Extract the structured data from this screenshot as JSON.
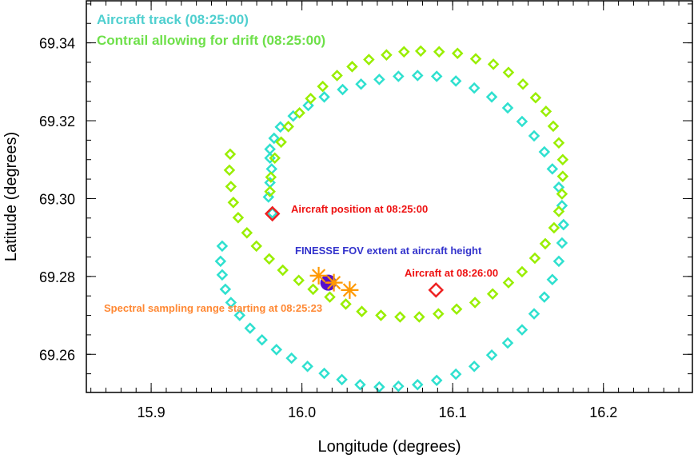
{
  "chart_data": {
    "type": "scatter",
    "xlabel": "Longitude (degrees)",
    "ylabel": "Latitude (degrees)",
    "xlim": [
      15.857,
      16.259
    ],
    "ylim": [
      69.2502,
      69.3508
    ],
    "xticks": [
      15.9,
      16.0,
      16.1,
      16.2
    ],
    "xtick_labels": [
      "15.9",
      "16.0",
      "16.1",
      "16.2"
    ],
    "yticks": [
      69.26,
      69.28,
      69.3,
      69.32,
      69.34
    ],
    "ytick_labels": [
      "69.26",
      "69.28",
      "69.30",
      "69.32",
      "69.34"
    ],
    "grid": false,
    "legend": {
      "placement": "top-left",
      "entries": [
        {
          "label": "Aircraft track (08:25:00)",
          "color": "#4fcfcf"
        },
        {
          "label": "Contrail allowing for drift (08:25:00)",
          "color": "#6ee04a"
        }
      ]
    },
    "series": [
      {
        "name": "Aircraft track (08:25:00)",
        "marker": "diamond",
        "color": "#2fe0cf",
        "points": [
          [
            15.9471,
            69.2878
          ],
          [
            15.946,
            69.2839
          ],
          [
            15.9471,
            69.2804
          ],
          [
            15.9492,
            69.2767
          ],
          [
            15.9529,
            69.2733
          ],
          [
            15.9587,
            69.27
          ],
          [
            15.9656,
            69.2667
          ],
          [
            15.9735,
            69.2637
          ],
          [
            15.9831,
            69.2612
          ],
          [
            15.9931,
            69.259
          ],
          [
            16.0037,
            69.2569
          ],
          [
            16.0148,
            69.2551
          ],
          [
            16.0265,
            69.2535
          ],
          [
            16.0386,
            69.2522
          ],
          [
            16.0513,
            69.2516
          ],
          [
            16.064,
            69.2518
          ],
          [
            16.0767,
            69.2522
          ],
          [
            16.0894,
            69.2533
          ],
          [
            16.1021,
            69.2549
          ],
          [
            16.1143,
            69.2569
          ],
          [
            16.1259,
            69.2598
          ],
          [
            16.1365,
            69.2629
          ],
          [
            16.146,
            69.2663
          ],
          [
            16.154,
            69.2704
          ],
          [
            16.1608,
            69.2747
          ],
          [
            16.1661,
            69.2792
          ],
          [
            16.1704,
            69.2839
          ],
          [
            16.1725,
            69.2886
          ],
          [
            16.1735,
            69.2933
          ],
          [
            16.1725,
            69.2982
          ],
          [
            16.1704,
            69.3029
          ],
          [
            16.1661,
            69.3076
          ],
          [
            16.1608,
            69.312
          ],
          [
            16.154,
            69.3161
          ],
          [
            16.146,
            69.3198
          ],
          [
            16.1365,
            69.3233
          ],
          [
            16.1259,
            69.3261
          ],
          [
            16.1143,
            69.3284
          ],
          [
            16.1021,
            69.3302
          ],
          [
            16.0894,
            69.3314
          ],
          [
            16.0767,
            69.3316
          ],
          [
            16.064,
            69.3314
          ],
          [
            16.0513,
            69.3306
          ],
          [
            16.0392,
            69.3294
          ],
          [
            16.027,
            69.328
          ],
          [
            16.0148,
            69.3261
          ],
          [
            16.0042,
            69.3239
          ],
          [
            15.9942,
            69.3212
          ],
          [
            15.9857,
            69.3184
          ],
          [
            15.9815,
            69.3155
          ],
          [
            15.9788,
            69.3127
          ],
          [
            15.9788,
            69.3104
          ],
          [
            15.9799,
            69.3076
          ],
          [
            15.9788,
            69.3041
          ],
          [
            15.9778,
            69.3004
          ],
          [
            15.9804,
            69.2963
          ]
        ]
      },
      {
        "name": "Contrail allowing for drift (08:25:00)",
        "marker": "diamond",
        "color": "#99ee00",
        "points": [
          [
            15.9524,
            69.3114
          ],
          [
            15.9519,
            69.3073
          ],
          [
            15.9529,
            69.3031
          ],
          [
            15.9545,
            69.299
          ],
          [
            15.9577,
            69.2951
          ],
          [
            15.9635,
            69.2912
          ],
          [
            15.9698,
            69.2878
          ],
          [
            15.9783,
            69.2845
          ],
          [
            15.9873,
            69.2816
          ],
          [
            15.9979,
            69.279
          ],
          [
            16.0074,
            69.2767
          ],
          [
            16.0185,
            69.2747
          ],
          [
            16.0291,
            69.2729
          ],
          [
            16.0397,
            69.271
          ],
          [
            16.0524,
            69.27
          ],
          [
            16.0651,
            69.2696
          ],
          [
            16.0778,
            69.2696
          ],
          [
            16.0905,
            69.2704
          ],
          [
            16.1026,
            69.2716
          ],
          [
            16.1148,
            69.2733
          ],
          [
            16.1265,
            69.2755
          ],
          [
            16.137,
            69.2784
          ],
          [
            16.146,
            69.2812
          ],
          [
            16.1545,
            69.2847
          ],
          [
            16.1614,
            69.2884
          ],
          [
            16.1672,
            69.2925
          ],
          [
            16.1704,
            69.2967
          ],
          [
            16.1725,
            69.3012
          ],
          [
            16.173,
            69.3057
          ],
          [
            16.173,
            69.31
          ],
          [
            16.1704,
            69.3143
          ],
          [
            16.1667,
            69.3186
          ],
          [
            16.1619,
            69.3224
          ],
          [
            16.155,
            69.3259
          ],
          [
            16.1466,
            69.3294
          ],
          [
            16.137,
            69.3324
          ],
          [
            16.127,
            69.3345
          ],
          [
            16.1153,
            69.3359
          ],
          [
            16.1032,
            69.3373
          ],
          [
            16.091,
            69.3377
          ],
          [
            16.0788,
            69.3379
          ],
          [
            16.0677,
            69.3377
          ],
          [
            16.0561,
            69.3369
          ],
          [
            16.0444,
            69.3357
          ],
          [
            16.0333,
            69.3339
          ],
          [
            16.0233,
            69.3316
          ],
          [
            16.0138,
            69.3288
          ],
          [
            16.0058,
            69.3257
          ],
          [
            15.9984,
            69.322
          ],
          [
            15.991,
            69.3185
          ],
          [
            15.9862,
            69.3145
          ],
          [
            15.982,
            69.3104
          ],
          [
            15.9794,
            69.3055
          ],
          [
            15.9788,
            69.3018
          ]
        ]
      },
      {
        "name": "Aircraft position at 08:25:00",
        "marker": "diamond",
        "color": "#ee2222",
        "points": [
          [
            15.9804,
            69.2961
          ]
        ],
        "label": "Aircraft position at 08:25:00",
        "label_color": "#ee1111"
      },
      {
        "name": "Aircraft at 08:26:00",
        "marker": "diamond",
        "color": "#ee2222",
        "points": [
          [
            16.0889,
            69.2765
          ]
        ],
        "label": "Aircraft at 08:26:00",
        "label_color": "#ee1111"
      },
      {
        "name": "FINESSE FOV extent at aircraft height",
        "marker": "asterisk-filled",
        "color": "#5511cc",
        "points": [
          [
            16.0175,
            69.2784
          ]
        ],
        "label": "FINESSE FOV extent at aircraft height",
        "label_color": "#3333cc"
      },
      {
        "name": "Spectral sampling range starting at 08:25:23",
        "marker": "asterisk",
        "color": "#ff9900",
        "points": [
          [
            16.0111,
            69.2802
          ],
          [
            16.0212,
            69.2784
          ],
          [
            16.0317,
            69.2765
          ]
        ],
        "label": "Spectral sampling range starting at 08:25:23",
        "label_color": "#ff8833"
      }
    ]
  }
}
